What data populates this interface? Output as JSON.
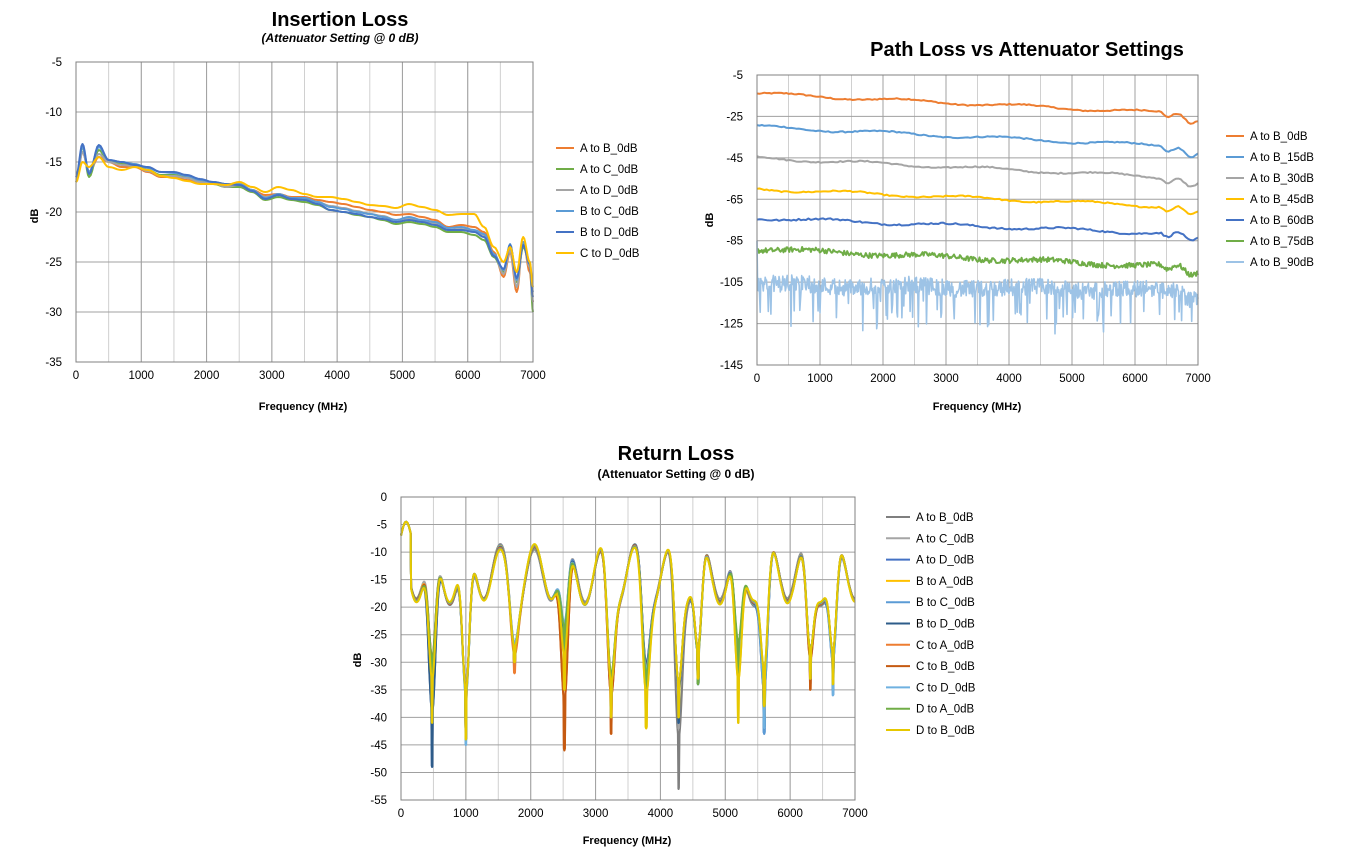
{
  "chart_data": [
    {
      "type": "line",
      "title": "Insertion Loss",
      "subtitle": "(Attenuator Setting @ 0 dB)",
      "xlabel": "Frequency (MHz)",
      "ylabel": "dB",
      "xlim": [
        0,
        7000
      ],
      "ylim": [
        -35,
        -5
      ],
      "xticks": [
        0,
        1000,
        2000,
        3000,
        4000,
        5000,
        6000,
        7000
      ],
      "yticks": [
        -5,
        -10,
        -15,
        -20,
        -25,
        -30,
        -35
      ],
      "grid": true,
      "legend": "right",
      "x": [
        0,
        100,
        200,
        350,
        500,
        700,
        900,
        1100,
        1300,
        1500,
        1700,
        1900,
        2100,
        2300,
        2500,
        2700,
        2900,
        3100,
        3300,
        3500,
        3700,
        3900,
        4100,
        4300,
        4500,
        4700,
        4900,
        5100,
        5300,
        5500,
        5700,
        5900,
        6100,
        6250,
        6400,
        6550,
        6650,
        6750,
        6850,
        6950,
        7000
      ],
      "series": [
        {
          "name": "A to B_0dB",
          "color": "#ED7D31",
          "values": [
            -17,
            -14,
            -16,
            -14.5,
            -15,
            -15.5,
            -15.5,
            -16,
            -16.5,
            -16.5,
            -16.8,
            -17,
            -17,
            -17.5,
            -17.2,
            -17.8,
            -18.3,
            -18.2,
            -18.5,
            -18.5,
            -18.8,
            -19,
            -19.2,
            -19.5,
            -19.8,
            -20,
            -20.3,
            -20.2,
            -20.5,
            -20.8,
            -21.5,
            -21.3,
            -21.5,
            -22,
            -24,
            -26.5,
            -24,
            -28,
            -23,
            -26,
            -29
          ]
        },
        {
          "name": "A to C_0dB",
          "color": "#70AD47",
          "values": [
            -17,
            -13.5,
            -16.5,
            -13.8,
            -15,
            -15.2,
            -15.3,
            -15.8,
            -16.3,
            -16.3,
            -16.5,
            -16.8,
            -17.2,
            -17.5,
            -17.5,
            -18,
            -18.8,
            -18.5,
            -18.8,
            -19,
            -19.3,
            -19.8,
            -20,
            -20.3,
            -20.5,
            -20.8,
            -21.2,
            -21,
            -21.2,
            -21.5,
            -22,
            -22,
            -22.3,
            -22.8,
            -24.5,
            -26,
            -23.5,
            -27,
            -23.5,
            -25,
            -30
          ]
        },
        {
          "name": "A to D_0dB",
          "color": "#A5A5A5",
          "values": [
            -17,
            -14,
            -16,
            -14.2,
            -15,
            -15.3,
            -15.4,
            -15.9,
            -16.4,
            -16.4,
            -16.6,
            -17,
            -17.1,
            -17.5,
            -17.3,
            -17.9,
            -18.5,
            -18.3,
            -18.6,
            -18.7,
            -19,
            -19.4,
            -19.6,
            -19.9,
            -20.2,
            -20.4,
            -20.8,
            -20.6,
            -20.9,
            -21.1,
            -21.8,
            -21.7,
            -21.9,
            -22.3,
            -24.2,
            -26.2,
            -23.8,
            -27.5,
            -23.2,
            -25.5,
            -29
          ]
        },
        {
          "name": "B to C_0dB",
          "color": "#5B9BD5",
          "values": [
            -16.5,
            -13.5,
            -16,
            -13.5,
            -14.8,
            -15,
            -15.2,
            -15.6,
            -16,
            -16.1,
            -16.4,
            -16.8,
            -17,
            -17.2,
            -17.2,
            -17.8,
            -18.6,
            -18.2,
            -18.6,
            -18.6,
            -19,
            -19.5,
            -19.7,
            -20,
            -20.2,
            -20.5,
            -20.8,
            -20.5,
            -20.8,
            -21,
            -21.6,
            -21.5,
            -21.8,
            -22.2,
            -24.2,
            -25.8,
            -23.2,
            -26.8,
            -23,
            -25,
            -28
          ]
        },
        {
          "name": "B to D_0dB",
          "color": "#4472C4",
          "values": [
            -16.5,
            -13.2,
            -16.2,
            -13.3,
            -14.8,
            -15,
            -15.3,
            -15.5,
            -16,
            -16,
            -16.3,
            -16.7,
            -17,
            -17.2,
            -17.3,
            -17.9,
            -18.7,
            -18.3,
            -18.7,
            -18.8,
            -19.2,
            -19.8,
            -20,
            -20.2,
            -20.5,
            -20.7,
            -21,
            -20.8,
            -21,
            -21.3,
            -21.8,
            -21.8,
            -22,
            -22.5,
            -24.4,
            -25.7,
            -23.3,
            -26.6,
            -23.3,
            -25.2,
            -28.5
          ]
        },
        {
          "name": "C to D_0dB",
          "color": "#FFC000",
          "values": [
            -17,
            -15,
            -15.5,
            -14.5,
            -15.5,
            -15.8,
            -15.5,
            -15.8,
            -16.4,
            -16.6,
            -16.9,
            -17.2,
            -17.2,
            -17.3,
            -17,
            -17.5,
            -18,
            -17.5,
            -17.8,
            -18.2,
            -18.5,
            -18.5,
            -18.7,
            -19,
            -19.3,
            -19.4,
            -19.6,
            -19.2,
            -19.5,
            -19.8,
            -20.3,
            -20.2,
            -20.2,
            -21.5,
            -23.5,
            -25,
            -23.5,
            -26,
            -22.5,
            -25,
            -27.5
          ]
        }
      ]
    },
    {
      "type": "line",
      "title": "Path Loss vs Attenuator Settings",
      "xlabel": "Frequency (MHz)",
      "ylabel": "dB",
      "xlim": [
        0,
        7000
      ],
      "ylim": [
        -145,
        -5
      ],
      "xticks": [
        0,
        1000,
        2000,
        3000,
        4000,
        5000,
        6000,
        7000
      ],
      "yticks": [
        -5,
        -25,
        -45,
        -65,
        -85,
        -105,
        -125,
        -145
      ],
      "grid": true,
      "legend": "right",
      "series": [
        {
          "name": "A to B_0dB",
          "color": "#ED7D31",
          "start": -14,
          "end": -24,
          "noise": 0.6
        },
        {
          "name": "A to B_15dB",
          "color": "#5B9BD5",
          "start": -30,
          "end": -40,
          "noise": 0.6
        },
        {
          "name": "A to B_30dB",
          "color": "#A5A5A5",
          "start": -45,
          "end": -55,
          "noise": 0.6
        },
        {
          "name": "A to B_45dB",
          "color": "#FFC000",
          "start": -60,
          "end": -69,
          "noise": 0.6
        },
        {
          "name": "A to B_60dB",
          "color": "#4472C4",
          "start": -74,
          "end": -82,
          "noise": 0.8
        },
        {
          "name": "A to B_75dB",
          "color": "#70AD47",
          "start": -89,
          "end": -98,
          "noise": 2.5
        },
        {
          "name": "A to B_90dB",
          "color": "#9DC3E6",
          "start": -107,
          "end": -110,
          "noise": 7
        }
      ]
    },
    {
      "type": "line",
      "title": "Return Loss",
      "subtitle": "(Attenuator Setting @ 0 dB)",
      "xlabel": "Frequency (MHz)",
      "ylabel": "dB",
      "xlim": [
        0,
        7000
      ],
      "ylim": [
        -55,
        0
      ],
      "xticks": [
        0,
        1000,
        2000,
        3000,
        4000,
        5000,
        6000,
        7000
      ],
      "yticks": [
        0,
        -5,
        -10,
        -15,
        -20,
        -25,
        -30,
        -35,
        -40,
        -45,
        -50,
        -55
      ],
      "grid": true,
      "legend": "right",
      "nulls": [
        {
          "x": 480,
          "depths": [
            -41,
            -36,
            -49,
            -41,
            -46,
            -49,
            -36,
            -36,
            -40,
            -36,
            -41
          ]
        },
        {
          "x": 1000,
          "depths": [
            -44,
            -44,
            -44,
            -44,
            -45,
            -44,
            -44,
            -44,
            -45,
            -44,
            -44
          ]
        },
        {
          "x": 1750,
          "depths": [
            -30,
            -29,
            -31,
            -30,
            -29,
            -30,
            -32,
            -30,
            -29,
            -30,
            -30
          ]
        },
        {
          "x": 2520,
          "depths": [
            -30,
            -28,
            -30,
            -35,
            -28,
            -29,
            -46,
            -46,
            -27,
            -28,
            -35
          ]
        },
        {
          "x": 3240,
          "depths": [
            -38,
            -38,
            -39,
            -40,
            -38,
            -39,
            -43,
            -43,
            -40,
            -38,
            -40
          ]
        },
        {
          "x": 3780,
          "depths": [
            -36,
            -36,
            -35,
            -42,
            -37,
            -35,
            -38,
            -36,
            -36,
            -37,
            -42
          ]
        },
        {
          "x": 4280,
          "depths": [
            -53,
            -42,
            -41,
            -40,
            -41,
            -41,
            -40,
            -40,
            -40,
            -40,
            -40
          ]
        },
        {
          "x": 4580,
          "depths": [
            -33,
            -33,
            -34,
            -33,
            -33,
            -34,
            -33,
            -33,
            -33,
            -34,
            -33
          ]
        },
        {
          "x": 5200,
          "depths": [
            -34,
            -34,
            -35,
            -41,
            -34,
            -33,
            -33,
            -34,
            -36,
            -32,
            -41
          ]
        },
        {
          "x": 5600,
          "depths": [
            -40,
            -40,
            -43,
            -40,
            -43,
            -42,
            -40,
            -40,
            -42,
            -38,
            -38
          ]
        },
        {
          "x": 6310,
          "depths": [
            -33,
            -33,
            -34,
            -33,
            -33,
            -33,
            -35,
            -35,
            -33,
            -33,
            -33
          ]
        },
        {
          "x": 6660,
          "depths": [
            -34,
            -34,
            -36,
            -34,
            -35,
            -35,
            -34,
            -34,
            -36,
            -34,
            -34
          ]
        }
      ],
      "series": [
        {
          "name": "A to B_0dB",
          "color": "#7F7F7F"
        },
        {
          "name": "A to C_0dB",
          "color": "#A5A5A5"
        },
        {
          "name": "A to D_0dB",
          "color": "#4472C4"
        },
        {
          "name": "B to A_0dB",
          "color": "#FFC000"
        },
        {
          "name": "B to C_0dB",
          "color": "#5B9BD5"
        },
        {
          "name": "B to D_0dB",
          "color": "#2E5C8A"
        },
        {
          "name": "C to A_0dB",
          "color": "#ED7D31"
        },
        {
          "name": "C to B_0dB",
          "color": "#C55A11"
        },
        {
          "name": "C to D_0dB",
          "color": "#6FB1E0"
        },
        {
          "name": "D to A_0dB",
          "color": "#70AD47"
        },
        {
          "name": "D to B_0dB",
          "color": "#E6C800"
        }
      ]
    }
  ]
}
